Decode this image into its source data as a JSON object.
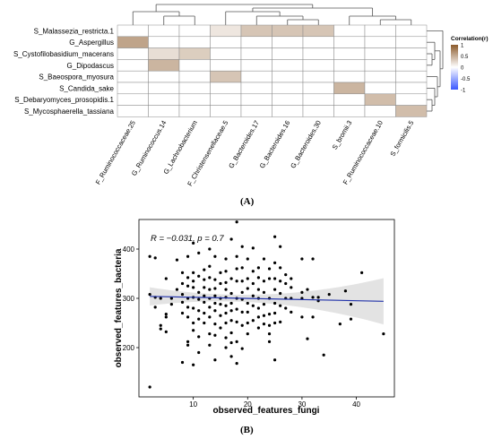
{
  "panels": [
    "(A)",
    "(B)"
  ],
  "chart_data": [
    {
      "type": "heatmap",
      "rows": [
        "S_Malassezia_restricta.1",
        "G_Aspergillus",
        "S_Cystofilobasidium_macerans",
        "G_Dipodascus",
        "S_Baeospora_myosura",
        "S_Candida_sake",
        "S_Debaryomyces_prosopidis.1",
        "S_Mycosphaerella_tassiana"
      ],
      "columns": [
        "F_Ruminococcaceae.25",
        "G_Ruminococcus.14",
        "G_Lachnobacterium",
        "F_Christensenellaceae.5",
        "G_Bacteroides.17",
        "G_Bacteroides.16",
        "G_Bacteroides.30",
        "S_bromii.3",
        "F_Ruminococcaceae.10",
        "S_formicilis.5"
      ],
      "values": [
        [
          null,
          null,
          null,
          0.15,
          0.35,
          0.35,
          0.35,
          null,
          null,
          null
        ],
        [
          0.55,
          null,
          null,
          null,
          null,
          null,
          null,
          null,
          null,
          null
        ],
        [
          null,
          0.2,
          0.3,
          null,
          null,
          null,
          null,
          null,
          null,
          null
        ],
        [
          null,
          0.45,
          null,
          null,
          null,
          null,
          null,
          null,
          null,
          null
        ],
        [
          null,
          null,
          null,
          0.35,
          null,
          null,
          null,
          null,
          null,
          null
        ],
        [
          null,
          null,
          null,
          null,
          null,
          null,
          null,
          0.45,
          null,
          null
        ],
        [
          null,
          null,
          null,
          null,
          null,
          null,
          null,
          null,
          0.4,
          null
        ],
        [
          null,
          null,
          null,
          null,
          null,
          null,
          null,
          null,
          null,
          0.4
        ]
      ],
      "legend": {
        "title": "Correlation(r)",
        "ticks": [
          "1",
          "0.5",
          "0",
          "-0.5",
          "-1"
        ],
        "tick_values": [
          1,
          0.5,
          0,
          -0.5,
          -1
        ],
        "colors": {
          "high": "#8B5A2B",
          "mid": "#ffffff",
          "low": "#3a58ff"
        },
        "placement": "right"
      }
    },
    {
      "type": "scatter",
      "xlabel": "observed_features_fungi",
      "ylabel": "observed_features_bacteria",
      "annotation": "R = −0.031, p = 0.7",
      "xlim": [
        0,
        47
      ],
      "ylim": [
        100,
        460
      ],
      "xticks": [
        10,
        20,
        30,
        40
      ],
      "yticks": [
        200,
        300,
        400
      ],
      "regression": {
        "x": [
          2,
          45
        ],
        "y": [
          304,
          294
        ]
      },
      "points": [
        [
          2,
          385
        ],
        [
          2,
          308
        ],
        [
          2,
          120
        ],
        [
          3,
          382
        ],
        [
          3,
          282
        ],
        [
          3,
          302
        ],
        [
          4,
          300
        ],
        [
          4,
          245
        ],
        [
          4,
          238
        ],
        [
          5,
          340
        ],
        [
          5,
          262
        ],
        [
          5,
          232
        ],
        [
          5,
          268
        ],
        [
          6,
          288
        ],
        [
          6,
          300
        ],
        [
          7,
          378
        ],
        [
          7,
          318
        ],
        [
          8,
          352
        ],
        [
          8,
          330
        ],
        [
          8,
          308
        ],
        [
          8,
          292
        ],
        [
          8,
          270
        ],
        [
          8,
          170
        ],
        [
          9,
          385
        ],
        [
          9,
          342
        ],
        [
          9,
          325
        ],
        [
          9,
          300
        ],
        [
          9,
          282
        ],
        [
          9,
          262
        ],
        [
          9,
          212
        ],
        [
          9,
          205
        ],
        [
          10,
          412
        ],
        [
          10,
          352
        ],
        [
          10,
          335
        ],
        [
          10,
          322
        ],
        [
          10,
          302
        ],
        [
          10,
          280
        ],
        [
          10,
          250
        ],
        [
          10,
          235
        ],
        [
          10,
          165
        ],
        [
          11,
          392
        ],
        [
          11,
          345
        ],
        [
          11,
          312
        ],
        [
          11,
          298
        ],
        [
          11,
          275
        ],
        [
          11,
          258
        ],
        [
          11,
          222
        ],
        [
          11,
          190
        ],
        [
          12,
          358
        ],
        [
          12,
          338
        ],
        [
          12,
          322
        ],
        [
          12,
          305
        ],
        [
          12,
          292
        ],
        [
          12,
          270
        ],
        [
          12,
          250
        ],
        [
          13,
          400
        ],
        [
          13,
          365
        ],
        [
          13,
          342
        ],
        [
          13,
          318
        ],
        [
          13,
          300
        ],
        [
          13,
          282
        ],
        [
          13,
          262
        ],
        [
          13,
          228
        ],
        [
          13,
          205
        ],
        [
          14,
          385
        ],
        [
          14,
          338
        ],
        [
          14,
          320
        ],
        [
          14,
          305
        ],
        [
          14,
          290
        ],
        [
          14,
          275
        ],
        [
          14,
          248
        ],
        [
          14,
          225
        ],
        [
          14,
          175
        ],
        [
          15,
          352
        ],
        [
          15,
          330
        ],
        [
          15,
          300
        ],
        [
          15,
          288
        ],
        [
          15,
          265
        ],
        [
          15,
          240
        ],
        [
          16,
          380
        ],
        [
          16,
          355
        ],
        [
          16,
          332
        ],
        [
          16,
          318
        ],
        [
          16,
          302
        ],
        [
          16,
          285
        ],
        [
          16,
          270
        ],
        [
          16,
          250
        ],
        [
          16,
          220
        ],
        [
          16,
          200
        ],
        [
          17,
          420
        ],
        [
          17,
          340
        ],
        [
          17,
          310
        ],
        [
          17,
          290
        ],
        [
          17,
          275
        ],
        [
          17,
          255
        ],
        [
          17,
          230
        ],
        [
          17,
          210
        ],
        [
          17,
          182
        ],
        [
          18,
          455
        ],
        [
          18,
          385
        ],
        [
          18,
          360
        ],
        [
          18,
          335
        ],
        [
          18,
          300
        ],
        [
          18,
          278
        ],
        [
          18,
          252
        ],
        [
          18,
          212
        ],
        [
          18,
          168
        ],
        [
          19,
          405
        ],
        [
          19,
          362
        ],
        [
          19,
          335
        ],
        [
          19,
          312
        ],
        [
          19,
          298
        ],
        [
          19,
          272
        ],
        [
          19,
          245
        ],
        [
          19,
          198
        ],
        [
          20,
          380
        ],
        [
          20,
          340
        ],
        [
          20,
          320
        ],
        [
          20,
          290
        ],
        [
          20,
          272
        ],
        [
          20,
          250
        ],
        [
          20,
          228
        ],
        [
          21,
          402
        ],
        [
          21,
          355
        ],
        [
          21,
          330
        ],
        [
          21,
          305
        ],
        [
          21,
          285
        ],
        [
          21,
          255
        ],
        [
          22,
          362
        ],
        [
          22,
          342
        ],
        [
          22,
          318
        ],
        [
          22,
          300
        ],
        [
          22,
          280
        ],
        [
          22,
          262
        ],
        [
          22,
          240
        ],
        [
          23,
          380
        ],
        [
          23,
          335
        ],
        [
          23,
          312
        ],
        [
          23,
          288
        ],
        [
          23,
          265
        ],
        [
          23,
          248
        ],
        [
          24,
          360
        ],
        [
          24,
          340
        ],
        [
          24,
          300
        ],
        [
          24,
          268
        ],
        [
          24,
          245
        ],
        [
          24,
          228
        ],
        [
          24,
          212
        ],
        [
          25,
          425
        ],
        [
          25,
          372
        ],
        [
          25,
          340
        ],
        [
          25,
          318
        ],
        [
          25,
          290
        ],
        [
          25,
          270
        ],
        [
          25,
          250
        ],
        [
          25,
          175
        ],
        [
          26,
          405
        ],
        [
          26,
          362
        ],
        [
          26,
          335
        ],
        [
          26,
          310
        ],
        [
          26,
          285
        ],
        [
          26,
          252
        ],
        [
          27,
          348
        ],
        [
          27,
          330
        ],
        [
          27,
          300
        ],
        [
          27,
          280
        ],
        [
          28,
          340
        ],
        [
          28,
          322
        ],
        [
          28,
          300
        ],
        [
          28,
          272
        ],
        [
          30,
          380
        ],
        [
          30,
          312
        ],
        [
          30,
          300
        ],
        [
          30,
          262
        ],
        [
          31,
          318
        ],
        [
          31,
          218
        ],
        [
          32,
          380
        ],
        [
          32,
          302
        ],
        [
          32,
          262
        ],
        [
          33,
          302
        ],
        [
          33,
          295
        ],
        [
          34,
          185
        ],
        [
          35,
          308
        ],
        [
          37,
          248
        ],
        [
          38,
          315
        ],
        [
          39,
          258
        ],
        [
          39,
          288
        ],
        [
          41,
          352
        ],
        [
          45,
          228
        ]
      ]
    }
  ]
}
